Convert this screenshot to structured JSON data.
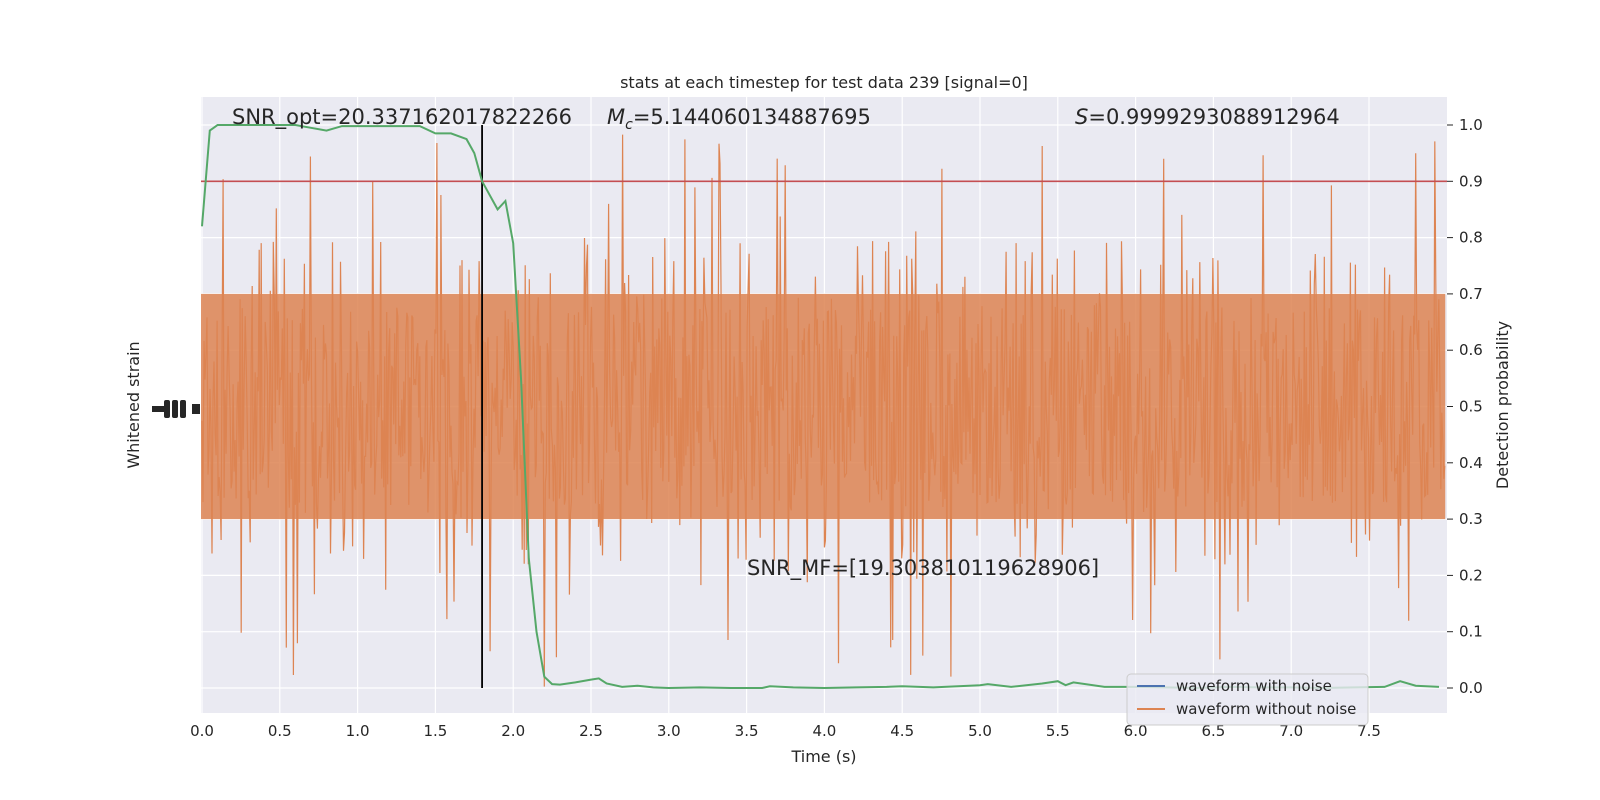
{
  "chart_data": {
    "type": "line",
    "title": "stats at each timestep for test data 239 [signal=0]",
    "xlabel": "Time (s)",
    "ylabel_left": "Whitened strain",
    "ylabel_right": "Detection probability",
    "xlim": [
      0.0,
      8.0
    ],
    "ylim_right": [
      -0.05,
      1.05
    ],
    "x_ticks": [
      "0.0",
      "0.5",
      "1.0",
      "1.5",
      "2.0",
      "2.5",
      "3.0",
      "3.5",
      "4.0",
      "4.5",
      "5.0",
      "5.5",
      "6.0",
      "6.5",
      "7.0",
      "7.5"
    ],
    "y_ticks_right": [
      "0.0",
      "0.1",
      "0.2",
      "0.3",
      "0.4",
      "0.5",
      "0.6",
      "0.7",
      "0.8",
      "0.9",
      "1.0"
    ],
    "grid": true,
    "legend_position": "lower-right",
    "annotations": {
      "snr_opt": "SNR_opt=20.337162017822266",
      "mc_symbol": "M",
      "mc_sub": "c",
      "mc_value": "=5.144060134887695",
      "s_symbol": "S",
      "s_value": "=0.9999293088912964",
      "snr_mf": "SNR_MF=[19.303810119628906]"
    },
    "series": [
      {
        "name": "waveform with noise",
        "color": "#4c72b0"
      },
      {
        "name": "waveform without noise",
        "color": "#dd8452"
      }
    ],
    "noise_band": {
      "color": "#dd8452",
      "dense_range_prob": [
        0.3,
        0.7
      ],
      "spike_range_prob": [
        0.0,
        1.0
      ]
    },
    "detection_probability": {
      "color": "#55a868",
      "x": [
        0.0,
        0.05,
        0.1,
        0.2,
        0.3,
        0.4,
        0.5,
        0.6,
        0.7,
        0.8,
        0.9,
        1.0,
        1.1,
        1.2,
        1.3,
        1.4,
        1.5,
        1.6,
        1.7,
        1.75,
        1.8,
        1.9,
        1.95,
        2.0,
        2.05,
        2.1,
        2.15,
        2.2,
        2.25,
        2.3,
        2.4,
        2.5,
        2.55,
        2.6,
        2.7,
        2.8,
        2.9,
        3.0,
        3.2,
        3.4,
        3.6,
        3.65,
        3.8,
        4.0,
        4.2,
        4.4,
        4.5,
        4.7,
        5.0,
        5.05,
        5.2,
        5.4,
        5.5,
        5.55,
        5.6,
        5.8,
        6.0,
        6.2,
        6.4,
        6.6,
        6.8,
        7.0,
        7.2,
        7.4,
        7.6,
        7.7,
        7.8,
        7.95
      ],
      "values": [
        0.82,
        0.99,
        1.0,
        1.0,
        1.0,
        1.0,
        1.0,
        1.0,
        0.995,
        0.99,
        0.998,
        0.998,
        0.998,
        0.998,
        0.998,
        0.998,
        0.985,
        0.985,
        0.975,
        0.95,
        0.9,
        0.85,
        0.865,
        0.79,
        0.55,
        0.23,
        0.1,
        0.02,
        0.007,
        0.006,
        0.01,
        0.015,
        0.017,
        0.008,
        0.002,
        0.004,
        0.001,
        0.0,
        0.001,
        0.0,
        0.0,
        0.003,
        0.001,
        0.0,
        0.001,
        0.002,
        0.003,
        0.001,
        0.005,
        0.007,
        0.002,
        0.008,
        0.012,
        0.005,
        0.01,
        0.002,
        0.002,
        0.001,
        0.0,
        0.002,
        0.001,
        0.001,
        0.0,
        0.001,
        0.002,
        0.012,
        0.004,
        0.002
      ]
    },
    "threshold": {
      "value": 0.9,
      "color": "#c44e52"
    },
    "vertical_marker": {
      "x": 1.8,
      "color": "#000000"
    }
  }
}
